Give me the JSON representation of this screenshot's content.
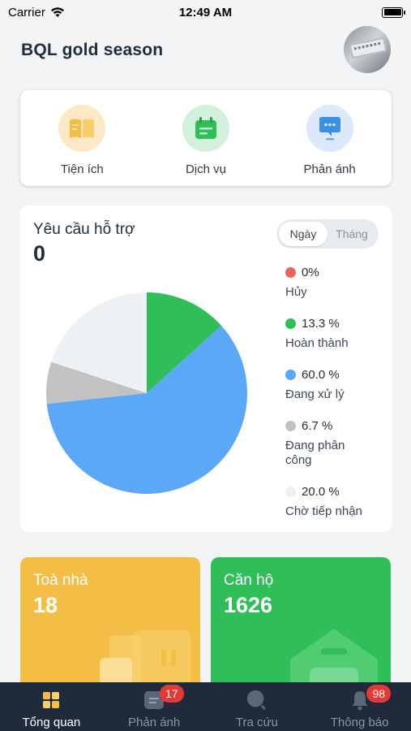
{
  "status_bar": {
    "carrier": "Carrier",
    "time": "12:49 AM"
  },
  "header": {
    "title": "BQL gold season"
  },
  "quick_actions": [
    {
      "label": "Tiện ích",
      "icon": "book-icon",
      "bg": "#fde9c6",
      "color": "#f4bd45"
    },
    {
      "label": "Dịch vụ",
      "icon": "calendar-icon",
      "bg": "#d3f0dc",
      "color": "#2fbe58"
    },
    {
      "label": "Phản ánh",
      "icon": "chat-icon",
      "bg": "#dbe9fb",
      "color": "#3a8fe6"
    }
  ],
  "support": {
    "title": "Yêu cầu hỗ trợ",
    "count": "0",
    "tabs": [
      {
        "label": "Ngày",
        "active": true
      },
      {
        "label": "Tháng",
        "active": false
      }
    ]
  },
  "chart_data": {
    "type": "pie",
    "slices": [
      {
        "label": "Hủy",
        "value": 0,
        "display": "0%",
        "color": "#f06262"
      },
      {
        "label": "Hoàn thành",
        "value": 13.3,
        "display": "13.3 %",
        "color": "#2fbe58"
      },
      {
        "label": "Đang xử lý",
        "value": 60.0,
        "display": "60.0 %",
        "color": "#5aa8f6"
      },
      {
        "label": "Đang phân công",
        "value": 6.7,
        "display": "6.7 %",
        "color": "#c2c2c2"
      },
      {
        "label": "Chờ tiếp nhận",
        "value": 20.0,
        "display": "20.0 %",
        "color": "#eef1f4"
      }
    ]
  },
  "stats": {
    "building": {
      "label": "Toà nhà",
      "value": "18"
    },
    "apartment": {
      "label": "Căn hộ",
      "value": "1626"
    }
  },
  "bottom_nav": [
    {
      "label": "Tổng quan",
      "icon": "dashboard-icon",
      "active": true,
      "badge": ""
    },
    {
      "label": "Phản ánh",
      "icon": "feedback-icon",
      "active": false,
      "badge": "17"
    },
    {
      "label": "Tra cứu",
      "icon": "search-icon",
      "active": false,
      "badge": ""
    },
    {
      "label": "Thông báo",
      "icon": "bell-icon",
      "active": false,
      "badge": "98"
    }
  ]
}
